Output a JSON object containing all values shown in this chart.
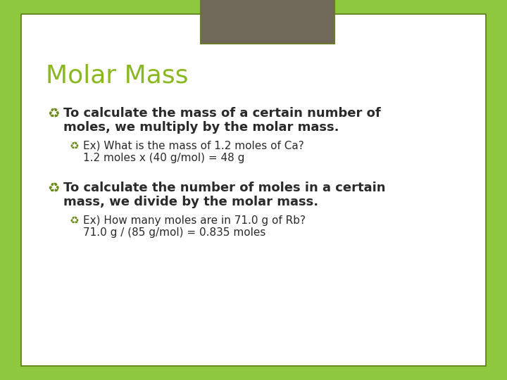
{
  "title": "Molar Mass",
  "title_color": "#8ab820",
  "title_fontsize": 26,
  "background_green": "#8dc83f",
  "background_white": "#ffffff",
  "taupe_rect_color": "#706858",
  "taupe_border_color": "#6a7a2a",
  "text_color": "#2a2a2a",
  "bullet_color": "#6a8a18",
  "bullet1_bold_line1": "To calculate the mass of a certain number of",
  "bullet1_bold_line2": "moles, we multiply by the molar mass.",
  "bullet1_sub_line1": "Ex) What is the mass of 1.2 moles of Ca?",
  "bullet1_sub_line2": "1.2 moles x (40 g/mol) = 48 g",
  "bullet2_bold_line1": "To calculate the number of moles in a certain",
  "bullet2_bold_line2": "mass, we divide by the molar mass.",
  "bullet2_sub_line1": "Ex) How many moles are in 71.0 g of Rb?",
  "bullet2_sub_line2": "71.0 g / (85 g/mol) = 0.835 moles",
  "body_fontsize": 13,
  "sub_fontsize": 11
}
